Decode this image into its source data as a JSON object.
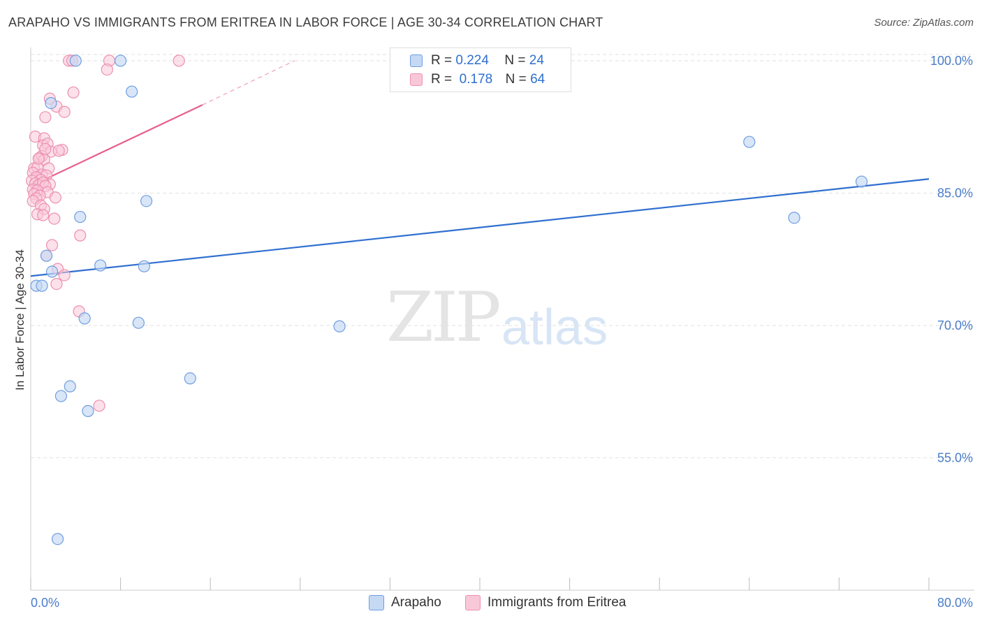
{
  "title": "ARAPAHO VS IMMIGRANTS FROM ERITREA IN LABOR FORCE | AGE 30-34 CORRELATION CHART",
  "source": "Source: ZipAtlas.com",
  "watermark": {
    "zip": "ZIP",
    "atlas": "atlas"
  },
  "legend": {
    "rows": [
      {
        "r_label": "R =",
        "r_value": "0.224",
        "n_label": "N =",
        "n_value": "24"
      },
      {
        "r_label": "R =",
        "r_value": "0.178",
        "n_label": "N =",
        "n_value": "64"
      }
    ]
  },
  "bottom_legend": {
    "series1": "Arapaho",
    "series2": "Immigrants from Eritrea"
  },
  "colors": {
    "arapaho_fill": "#c5d9f5",
    "arapaho_stroke": "#6f9ee0",
    "arapaho_line": "#2f6fd0",
    "eritrea_fill": "#f9c8d8",
    "eritrea_stroke": "#ec8fb0",
    "eritrea_line": "#e8608c",
    "grid": "#e2e2e2",
    "axis_text": "#4a7cc9"
  },
  "chart_data": {
    "type": "scatter",
    "title": "ARAPAHO VS IMMIGRANTS FROM ERITREA IN LABOR FORCE | AGE 30-34 CORRELATION CHART",
    "xlabel": "",
    "ylabel": "In Labor Force | Age 30-34",
    "xlim": [
      0,
      80
    ],
    "ylim": [
      40,
      101.5
    ],
    "x_tick_labels": [
      "0.0%",
      "80.0%"
    ],
    "y_ticks": [
      55,
      70,
      85,
      100
    ],
    "y_tick_labels": [
      "55.0%",
      "70.0%",
      "85.0%",
      "100.0%"
    ],
    "grid": true,
    "series": [
      {
        "name": "Arapaho",
        "R": 0.224,
        "N": 24,
        "points": [
          [
            4.0,
            100.0
          ],
          [
            8.0,
            100.0
          ],
          [
            1.8,
            95.2
          ],
          [
            9.0,
            96.5
          ],
          [
            64.0,
            90.8
          ],
          [
            74.0,
            86.3
          ],
          [
            10.3,
            84.1
          ],
          [
            4.4,
            82.3
          ],
          [
            68.0,
            82.2
          ],
          [
            1.4,
            77.9
          ],
          [
            6.2,
            76.8
          ],
          [
            10.1,
            76.7
          ],
          [
            1.9,
            76.1
          ],
          [
            0.5,
            74.5
          ],
          [
            1.0,
            74.5
          ],
          [
            4.8,
            70.8
          ],
          [
            9.6,
            70.3
          ],
          [
            27.5,
            69.9
          ],
          [
            14.2,
            64.0
          ],
          [
            3.5,
            63.1
          ],
          [
            2.7,
            62.0
          ],
          [
            5.1,
            60.3
          ],
          [
            2.4,
            45.8
          ]
        ],
        "trend": {
          "x": [
            0,
            80
          ],
          "y": [
            75.6,
            86.6
          ]
        }
      },
      {
        "name": "Immigrants from Eritrea",
        "R": 0.178,
        "N": 64,
        "points": [
          [
            3.4,
            100.0
          ],
          [
            3.7,
            100.0
          ],
          [
            7.0,
            100.0
          ],
          [
            13.2,
            100.0
          ],
          [
            6.8,
            99.0
          ],
          [
            3.8,
            96.4
          ],
          [
            1.7,
            95.7
          ],
          [
            2.3,
            94.8
          ],
          [
            3.0,
            94.2
          ],
          [
            1.3,
            93.6
          ],
          [
            0.4,
            91.4
          ],
          [
            1.2,
            91.2
          ],
          [
            1.1,
            90.4
          ],
          [
            1.5,
            90.6
          ],
          [
            1.8,
            89.7
          ],
          [
            2.8,
            89.9
          ],
          [
            2.5,
            89.8
          ],
          [
            0.8,
            89.0
          ],
          [
            1.0,
            89.2
          ],
          [
            1.2,
            88.8
          ],
          [
            0.3,
            87.8
          ],
          [
            0.6,
            87.9
          ],
          [
            1.6,
            87.8
          ],
          [
            0.2,
            87.3
          ],
          [
            1.0,
            87.1
          ],
          [
            1.4,
            87.0
          ],
          [
            0.5,
            86.8
          ],
          [
            0.9,
            86.5
          ],
          [
            1.7,
            86.0
          ],
          [
            0.1,
            86.4
          ],
          [
            0.4,
            86.1
          ],
          [
            0.7,
            85.9
          ],
          [
            1.1,
            86.2
          ],
          [
            1.3,
            85.8
          ],
          [
            0.2,
            85.4
          ],
          [
            0.6,
            85.3
          ],
          [
            1.5,
            85.1
          ],
          [
            0.3,
            84.9
          ],
          [
            0.8,
            84.7
          ],
          [
            0.5,
            84.4
          ],
          [
            2.2,
            84.5
          ],
          [
            0.2,
            84.1
          ],
          [
            0.9,
            83.6
          ],
          [
            1.2,
            83.2
          ],
          [
            0.6,
            82.6
          ],
          [
            1.1,
            82.5
          ],
          [
            2.1,
            82.1
          ],
          [
            4.4,
            80.2
          ],
          [
            1.9,
            79.1
          ],
          [
            1.4,
            77.9
          ],
          [
            2.4,
            76.4
          ],
          [
            3.0,
            75.7
          ],
          [
            2.3,
            74.7
          ],
          [
            4.3,
            71.6
          ],
          [
            6.1,
            60.9
          ],
          [
            0.7,
            88.9
          ],
          [
            1.3,
            90.0
          ]
        ],
        "trend": {
          "x": [
            0,
            15.3
          ],
          "y": [
            85.8,
            95.0
          ]
        },
        "trend_dashed": {
          "x": [
            15.3,
            23.5
          ],
          "y": [
            95.0,
            100.0
          ]
        }
      }
    ]
  }
}
